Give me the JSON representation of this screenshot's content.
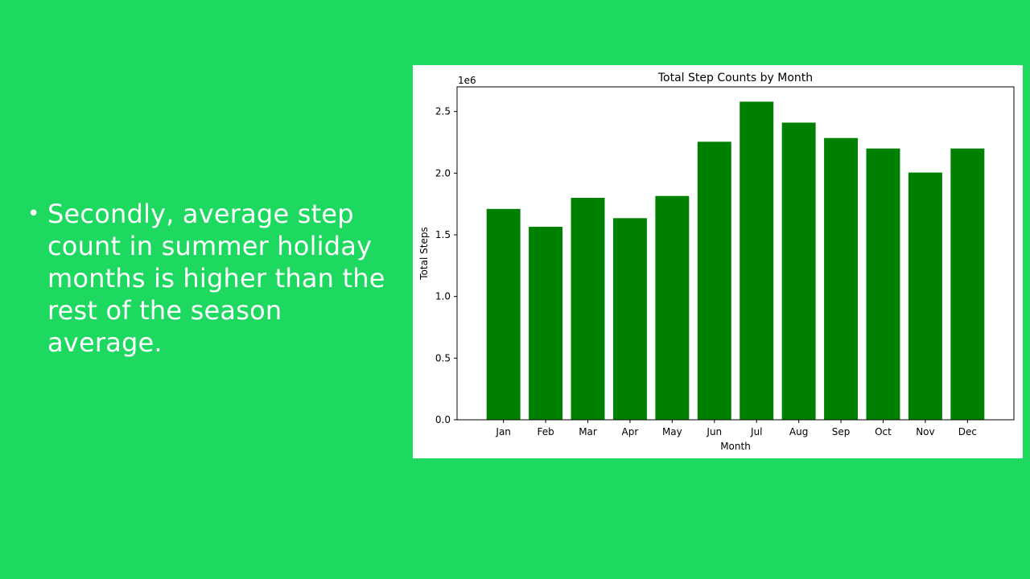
{
  "slide": {
    "bullet_symbol": "•",
    "bullet_text": "Secondly, average step count in summer holiday months is higher than the rest of the season average."
  },
  "colors": {
    "background": "#1dd95f",
    "bar": "#008000",
    "text": "#ffffff"
  },
  "chart_data": {
    "type": "bar",
    "title": "Total Step Counts by Month",
    "xlabel": "Month",
    "ylabel": "Total Steps",
    "offset_text": "1e6",
    "categories": [
      "Jan",
      "Feb",
      "Mar",
      "Apr",
      "May",
      "Jun",
      "Jul",
      "Aug",
      "Sep",
      "Oct",
      "Nov",
      "Dec"
    ],
    "values": [
      1710000,
      1565000,
      1800000,
      1635000,
      1815000,
      2255000,
      2580000,
      2410000,
      2285000,
      2200000,
      2005000,
      2200000
    ],
    "ylim": [
      0,
      2700000
    ],
    "yticks": [
      0,
      500000,
      1000000,
      1500000,
      2000000,
      2500000
    ],
    "ytick_labels": [
      "0.0",
      "0.5",
      "1.0",
      "1.5",
      "2.0",
      "2.5"
    ],
    "grid": false,
    "bar_color": "#008000"
  }
}
